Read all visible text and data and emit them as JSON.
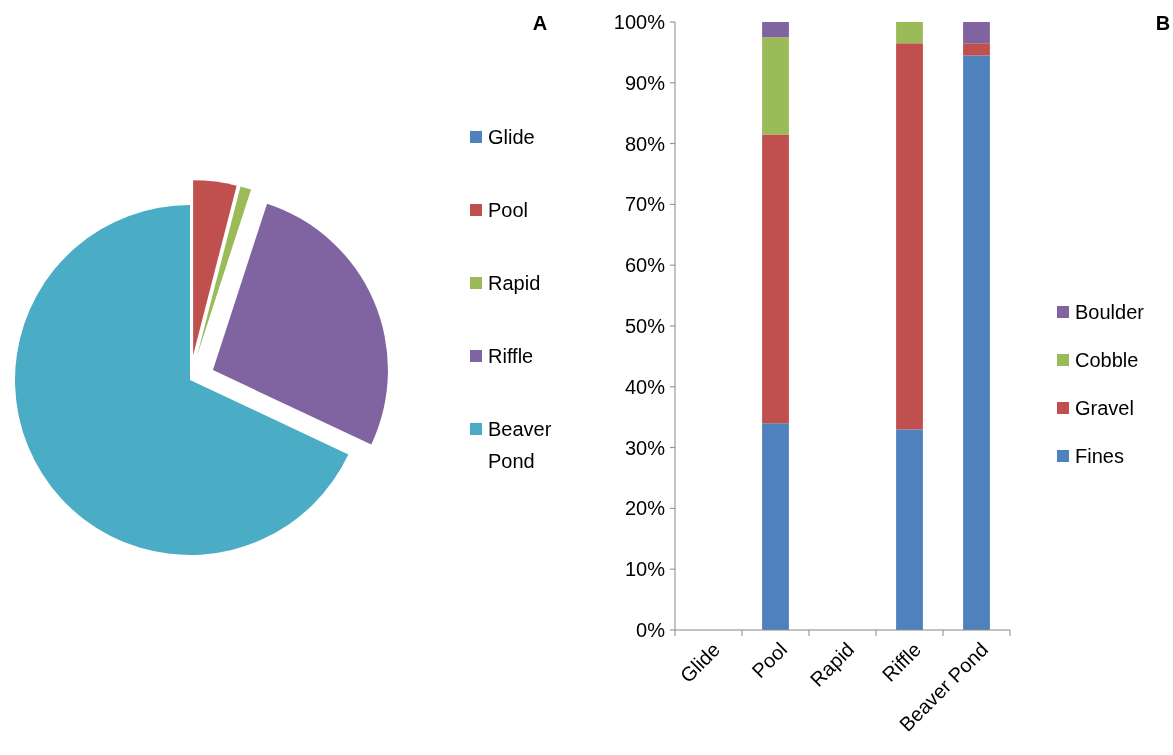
{
  "chart_data": [
    {
      "type": "pie",
      "annotations": [
        "A"
      ],
      "categories": [
        "Glide",
        "Pool",
        "Rapid",
        "Riffle",
        "Beaver Pond"
      ],
      "values": [
        0,
        4,
        1,
        27,
        68
      ],
      "colors": [
        "#4f81bd",
        "#c0504d",
        "#9bbb59",
        "#8064a2",
        "#4bacc6"
      ],
      "legend": "right"
    },
    {
      "type": "bar",
      "annotations": [
        "B"
      ],
      "stacked": true,
      "categories": [
        "Glide",
        "Pool",
        "Rapid",
        "Riffle",
        "Beaver Pond"
      ],
      "series": [
        {
          "name": "Fines",
          "color": "#4f81bd",
          "values": [
            null,
            34,
            null,
            33,
            94.5
          ]
        },
        {
          "name": "Gravel",
          "color": "#c0504d",
          "values": [
            null,
            47.5,
            null,
            63.5,
            2
          ]
        },
        {
          "name": "Cobble",
          "color": "#9bbb59",
          "values": [
            null,
            16,
            null,
            3.5,
            null
          ]
        },
        {
          "name": "Boulder",
          "color": "#8064a2",
          "values": [
            null,
            2.5,
            null,
            null,
            3.5
          ]
        }
      ],
      "ylim": [
        0,
        100
      ],
      "yticks": [
        {
          "value": 0,
          "label": "0%"
        },
        {
          "value": 10,
          "label": "10%"
        },
        {
          "value": 20,
          "label": "20%"
        },
        {
          "value": 30,
          "label": "30%"
        },
        {
          "value": 40,
          "label": "40%"
        },
        {
          "value": 50,
          "label": "50%"
        },
        {
          "value": 60,
          "label": "60%"
        },
        {
          "value": 70,
          "label": "70%"
        },
        {
          "value": 80,
          "label": "80%"
        },
        {
          "value": 90,
          "label": "90%"
        },
        {
          "value": 100,
          "label": "100%"
        }
      ],
      "grid": false,
      "legend": "right"
    }
  ]
}
